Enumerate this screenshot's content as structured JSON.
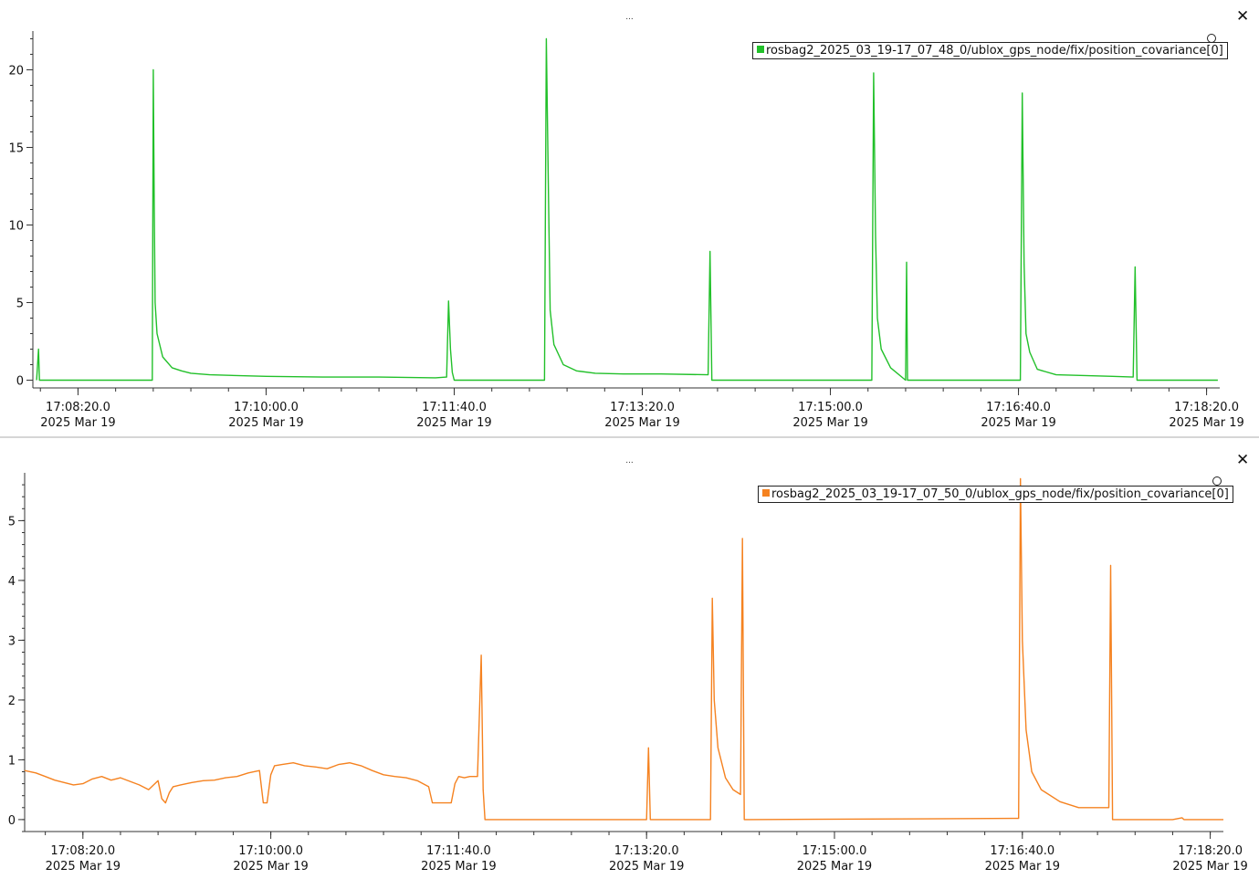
{
  "panels": [
    {
      "title": "...",
      "close_label": "✕",
      "legend": "rosbag2_2025_03_19-17_07_48_0/ublox_gps_node/fix/position_covariance[0]",
      "color": "#22c02a"
    },
    {
      "title": "...",
      "close_label": "✕",
      "legend": "rosbag2_2025_03_19-17_07_50_0/ublox_gps_node/fix/position_covariance[0]",
      "color": "#f58220"
    }
  ],
  "chart_data": [
    {
      "type": "line",
      "series": [
        {
          "name": "rosbag2_2025_03_19-17_07_48_0/ublox_gps_node/fix/position_covariance[0]",
          "color": "#22c02a",
          "x": [
            "17:07:58",
            "17:07:59",
            "17:07:59.5",
            "17:08:59.5",
            "17:09:00",
            "17:09:00.5",
            "17:09:01",
            "17:09:02",
            "17:09:05",
            "17:09:10",
            "17:09:15",
            "17:09:20",
            "17:09:30",
            "17:10:00",
            "17:10:30",
            "17:11:00",
            "17:11:30",
            "17:11:36",
            "17:11:37",
            "17:11:38",
            "17:11:39",
            "17:11:40",
            "17:11:41",
            "17:11:42",
            "17:12:28",
            "17:12:29",
            "17:12:30",
            "17:12:31",
            "17:12:33",
            "17:12:38",
            "17:12:45",
            "17:12:55",
            "17:13:10",
            "17:13:30",
            "17:13:55",
            "17:13:56",
            "17:13:57",
            "17:13:58",
            "17:15:22",
            "17:15:23",
            "17:15:24",
            "17:15:25",
            "17:15:27",
            "17:15:32",
            "17:15:40",
            "17:15:40.5",
            "17:15:41",
            "17:15:42",
            "17:16:41",
            "17:16:42",
            "17:16:43",
            "17:16:44",
            "17:16:46",
            "17:16:50",
            "17:17:00",
            "17:17:15",
            "17:17:30",
            "17:17:41",
            "17:17:42",
            "17:17:43",
            "17:18:26"
          ],
          "values": [
            0,
            2,
            0,
            0,
            20,
            11.5,
            5,
            3,
            1.5,
            0.8,
            0.6,
            0.45,
            0.35,
            0.25,
            0.2,
            0.2,
            0.15,
            0.2,
            5.1,
            2,
            0.5,
            0,
            0,
            0,
            0,
            22,
            13,
            4.5,
            2.3,
            1,
            0.6,
            0.45,
            0.4,
            0.4,
            0.35,
            8.3,
            0,
            0,
            0,
            19.8,
            9.3,
            4,
            2,
            0.8,
            0,
            7.6,
            0,
            0,
            0,
            18.5,
            7.5,
            3,
            1.8,
            0.7,
            0.35,
            0.3,
            0.25,
            0.2,
            7.3,
            0,
            0
          ]
        }
      ],
      "ylim": [
        -0.5,
        22.5
      ],
      "yticks": [
        0,
        5,
        10,
        15,
        20
      ],
      "xlim": [
        "17:07:56",
        "17:18:27"
      ],
      "xticks": [
        {
          "time": "17:08:20.0",
          "date": "2025 Mar 19"
        },
        {
          "time": "17:10:00.0",
          "date": "2025 Mar 19"
        },
        {
          "time": "17:11:40.0",
          "date": "2025 Mar 19"
        },
        {
          "time": "17:13:20.0",
          "date": "2025 Mar 19"
        },
        {
          "time": "17:15:00.0",
          "date": "2025 Mar 19"
        },
        {
          "time": "17:16:40.0",
          "date": "2025 Mar 19"
        },
        {
          "time": "17:18:20.0",
          "date": "2025 Mar 19"
        }
      ],
      "legend_position": "top-right",
      "grid": false
    },
    {
      "type": "line",
      "series": [
        {
          "name": "rosbag2_2025_03_19-17_07_50_0/ublox_gps_node/fix/position_covariance[0]",
          "color": "#f58220",
          "x": [
            "17:07:49",
            "17:07:55",
            "17:08:00",
            "17:08:05",
            "17:08:10",
            "17:08:15",
            "17:08:20",
            "17:08:25",
            "17:08:30",
            "17:08:35",
            "17:08:40",
            "17:08:45",
            "17:08:50",
            "17:08:55",
            "17:09:00",
            "17:09:02",
            "17:09:04",
            "17:09:06",
            "17:09:08",
            "17:09:12",
            "17:09:18",
            "17:09:24",
            "17:09:30",
            "17:09:36",
            "17:09:42",
            "17:09:48",
            "17:09:54",
            "17:09:56",
            "17:09:58",
            "17:10:00",
            "17:10:02",
            "17:10:06",
            "17:10:12",
            "17:10:18",
            "17:10:24",
            "17:10:30",
            "17:10:36",
            "17:10:42",
            "17:10:48",
            "17:10:54",
            "17:11:00",
            "17:11:06",
            "17:11:12",
            "17:11:18",
            "17:11:24",
            "17:11:26",
            "17:11:28",
            "17:11:32",
            "17:11:36",
            "17:11:38",
            "17:11:40",
            "17:11:43",
            "17:11:46",
            "17:11:50",
            "17:11:52",
            "17:11:53",
            "17:11:54",
            "17:11:55",
            "17:13:20",
            "17:13:21",
            "17:13:22",
            "17:13:54",
            "17:13:55",
            "17:13:56",
            "17:13:58",
            "17:14:02",
            "17:14:06",
            "17:14:10",
            "17:14:11",
            "17:14:12",
            "17:14:13",
            "17:14:14",
            "17:16:35",
            "17:16:38",
            "17:16:39",
            "17:16:40",
            "17:16:42",
            "17:16:45",
            "17:16:50",
            "17:17:00",
            "17:17:10",
            "17:17:20",
            "17:17:26",
            "17:17:27",
            "17:17:28",
            "17:17:29",
            "17:18:00",
            "17:18:05",
            "17:18:06",
            "17:18:27"
          ],
          "values": [
            0.82,
            0.78,
            0.72,
            0.66,
            0.62,
            0.58,
            0.6,
            0.68,
            0.72,
            0.66,
            0.7,
            0.64,
            0.58,
            0.5,
            0.65,
            0.35,
            0.28,
            0.45,
            0.55,
            0.58,
            0.62,
            0.65,
            0.66,
            0.7,
            0.72,
            0.78,
            0.82,
            0.28,
            0.28,
            0.75,
            0.9,
            0.92,
            0.95,
            0.9,
            0.88,
            0.85,
            0.92,
            0.95,
            0.9,
            0.82,
            0.75,
            0.72,
            0.7,
            0.65,
            0.55,
            0.28,
            0.28,
            0.28,
            0.28,
            0.6,
            0.72,
            0.7,
            0.72,
            0.72,
            2.75,
            0.5,
            0,
            0,
            0,
            1.2,
            0,
            0,
            3.7,
            2,
            1.2,
            0.7,
            0.5,
            0.42,
            4.7,
            0,
            0,
            0,
            0.02,
            0.02,
            5.7,
            3,
            1.5,
            0.8,
            0.5,
            0.3,
            0.2,
            0.2,
            0.2,
            4.25,
            0,
            0,
            0,
            0.03,
            0,
            0
          ],
          "note_precision": "approximate, read from plot"
        }
      ],
      "ylim": [
        -0.2,
        5.8
      ],
      "yticks": [
        0,
        1,
        2,
        3,
        4,
        5
      ],
      "xlim": [
        "17:07:49",
        "17:18:27"
      ],
      "xticks": [
        {
          "time": "17:08:20.0",
          "date": "2025 Mar 19"
        },
        {
          "time": "17:10:00.0",
          "date": "2025 Mar 19"
        },
        {
          "time": "17:11:40.0",
          "date": "2025 Mar 19"
        },
        {
          "time": "17:13:20.0",
          "date": "2025 Mar 19"
        },
        {
          "time": "17:15:00.0",
          "date": "2025 Mar 19"
        },
        {
          "time": "17:16:40.0",
          "date": "2025 Mar 19"
        },
        {
          "time": "17:18:20.0",
          "date": "2025 Mar 19"
        }
      ],
      "legend_position": "top-right",
      "grid": false
    }
  ]
}
